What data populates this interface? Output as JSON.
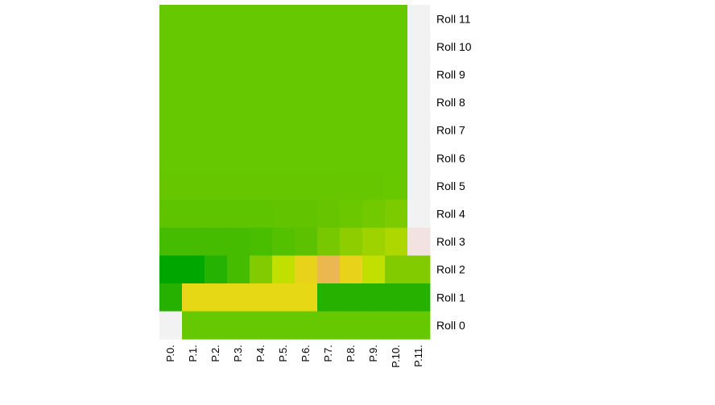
{
  "chart_data": {
    "type": "heatmap",
    "title": "",
    "xlabel": "",
    "ylabel": "",
    "legend": "none",
    "columns": [
      "P.0.",
      "P.1.",
      "P.2.",
      "P.3.",
      "P.4.",
      "P.5.",
      "P.6.",
      "P.7.",
      "P.8.",
      "P.9.",
      "P.10.",
      "P.11."
    ],
    "rows_top_to_bottom": [
      "Roll 11",
      "Roll 10",
      "Roll 9",
      "Roll 8",
      "Roll 7",
      "Roll 6",
      "Roll 5",
      "Roll 4",
      "Roll 3",
      "Roll 2",
      "Roll 1",
      "Roll 0"
    ],
    "cell_colors": [
      [
        "#66c800",
        "#66c800",
        "#66c800",
        "#66c800",
        "#66c800",
        "#66c800",
        "#66c800",
        "#66c800",
        "#66c800",
        "#66c800",
        "#66c800",
        "#f2f2f2"
      ],
      [
        "#66c800",
        "#66c800",
        "#66c800",
        "#66c800",
        "#66c800",
        "#66c800",
        "#66c800",
        "#66c800",
        "#66c800",
        "#66c800",
        "#66c800",
        "#f2f2f2"
      ],
      [
        "#66c800",
        "#66c800",
        "#66c800",
        "#66c800",
        "#66c800",
        "#66c800",
        "#66c800",
        "#66c800",
        "#66c800",
        "#66c800",
        "#66c800",
        "#f2f2f2"
      ],
      [
        "#66c800",
        "#66c800",
        "#66c800",
        "#66c800",
        "#66c800",
        "#66c800",
        "#66c800",
        "#66c800",
        "#66c800",
        "#66c800",
        "#66c800",
        "#f2f2f2"
      ],
      [
        "#66c800",
        "#66c800",
        "#66c800",
        "#66c800",
        "#66c800",
        "#66c800",
        "#66c800",
        "#66c800",
        "#66c800",
        "#66c800",
        "#66c800",
        "#f2f2f2"
      ],
      [
        "#66c800",
        "#66c800",
        "#66c800",
        "#66c800",
        "#66c800",
        "#66c800",
        "#66c800",
        "#66c800",
        "#66c800",
        "#66c800",
        "#66c800",
        "#f2f2f2"
      ],
      [
        "#66c700",
        "#66c700",
        "#66c700",
        "#66c700",
        "#66c700",
        "#66c700",
        "#66c700",
        "#66c700",
        "#66c600",
        "#66c600",
        "#68c800",
        "#f2f2f2"
      ],
      [
        "#5fc400",
        "#5fc400",
        "#5fc400",
        "#5fc400",
        "#5fc400",
        "#62c300",
        "#62c300",
        "#66c500",
        "#6bc700",
        "#72c900",
        "#7ccb00",
        "#f2f2f2"
      ],
      [
        "#46bc00",
        "#46bc00",
        "#46bc00",
        "#46bc00",
        "#49be00",
        "#53c000",
        "#5cc100",
        "#77c800",
        "#8ecd00",
        "#9fd300",
        "#aed700",
        "#f2e2e2"
      ],
      [
        "#00a600",
        "#00a600",
        "#25b200",
        "#45bc00",
        "#82cb00",
        "#c2e000",
        "#e8d31a",
        "#ebb750",
        "#e8d31a",
        "#c2e000",
        "#82cb00",
        "#82cb00"
      ],
      [
        "#26b000",
        "#e6d814",
        "#e6d814",
        "#e6d814",
        "#e6d814",
        "#e6d814",
        "#e6d814",
        "#26b000",
        "#26b000",
        "#26b000",
        "#26b000",
        "#26b000"
      ],
      [
        "#f2f2f2",
        "#66c800",
        "#66c800",
        "#66c800",
        "#66c800",
        "#66c800",
        "#66c800",
        "#66c800",
        "#66c800",
        "#66c800",
        "#66c800",
        "#66c800"
      ]
    ]
  }
}
